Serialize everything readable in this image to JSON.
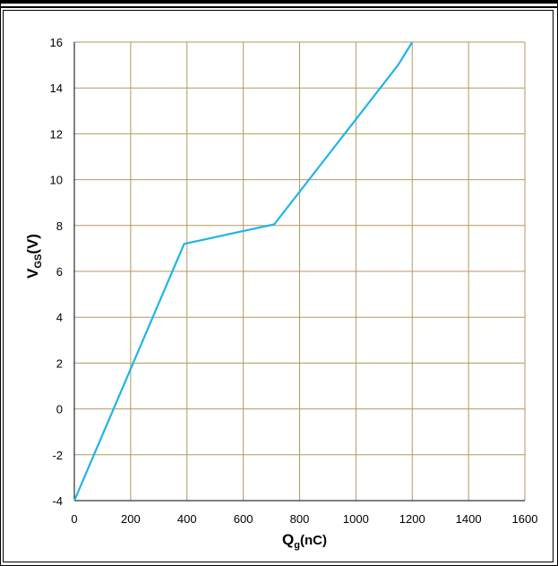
{
  "chart_data": {
    "type": "line",
    "title": "",
    "xlabel_main": "Q",
    "xlabel_sub": "g",
    "xlabel_unit": "(nC)",
    "ylabel_main": "V",
    "ylabel_sub": "GS",
    "ylabel_unit": "(V)",
    "xlim": [
      0,
      1600
    ],
    "ylim": [
      -4,
      16
    ],
    "x_ticks": [
      0,
      200,
      400,
      600,
      800,
      1000,
      1200,
      1400,
      1600
    ],
    "y_ticks": [
      -4,
      -2,
      0,
      2,
      4,
      6,
      8,
      10,
      12,
      14,
      16
    ],
    "grid": true,
    "line_color": "#1fb4e8",
    "grid_color": "#b39a5e",
    "series": [
      {
        "x": [
          0,
          390,
          710,
          1150,
          1200
        ],
        "y": [
          -4,
          7.2,
          8.05,
          15.0,
          16
        ]
      }
    ]
  }
}
